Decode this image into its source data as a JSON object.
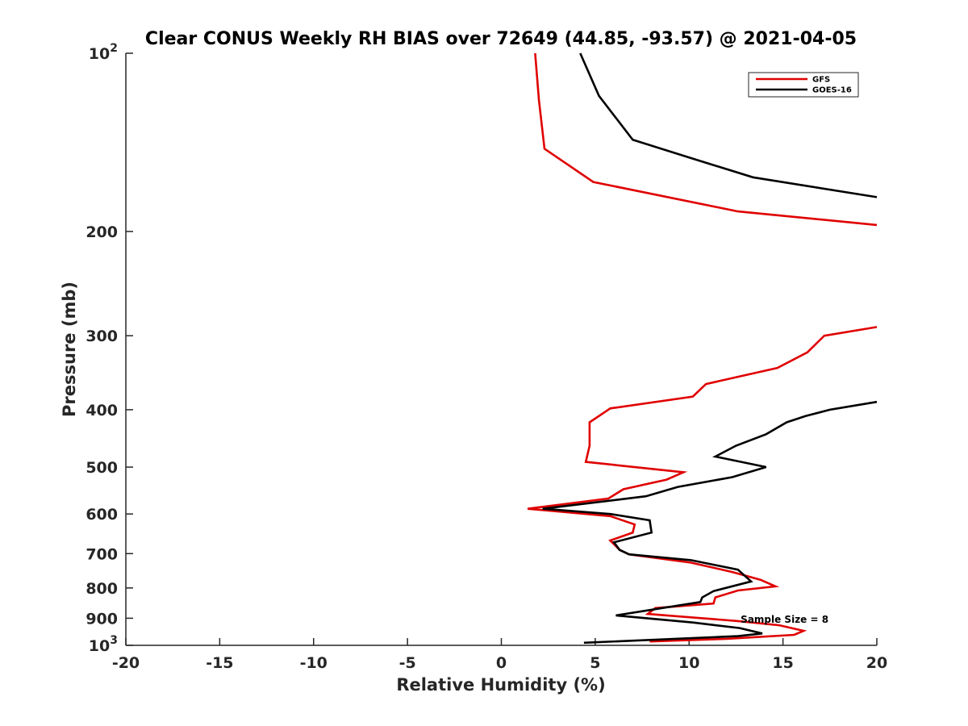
{
  "chart_data": {
    "type": "line",
    "title": "Clear CONUS Weekly RH BIAS over 72649 (44.85, -93.57) @ 2021-04-05",
    "xlabel": "Relative Humidity (%)",
    "ylabel": "Pressure (mb)",
    "xlim": [
      -20,
      20
    ],
    "ylim": [
      100,
      1000
    ],
    "y_scale": "log",
    "y_reversed": true,
    "grid": false,
    "legend_position": "top-right",
    "x_ticks": [
      {
        "value": -20,
        "label": "-20"
      },
      {
        "value": -15,
        "label": "-15"
      },
      {
        "value": -10,
        "label": "-10"
      },
      {
        "value": -5,
        "label": "-5"
      },
      {
        "value": 0,
        "label": "0"
      },
      {
        "value": 5,
        "label": "5"
      },
      {
        "value": 10,
        "label": "10"
      },
      {
        "value": 15,
        "label": "15"
      },
      {
        "value": 20,
        "label": "20"
      }
    ],
    "y_ticks": [
      {
        "value": 100,
        "label": "10",
        "sup": "2"
      },
      {
        "value": 200,
        "label": "200",
        "sup": ""
      },
      {
        "value": 300,
        "label": "300",
        "sup": ""
      },
      {
        "value": 400,
        "label": "400",
        "sup": ""
      },
      {
        "value": 500,
        "label": "500",
        "sup": ""
      },
      {
        "value": 600,
        "label": "600",
        "sup": ""
      },
      {
        "value": 700,
        "label": "700",
        "sup": ""
      },
      {
        "value": 800,
        "label": "800",
        "sup": ""
      },
      {
        "value": 900,
        "label": "900",
        "sup": ""
      },
      {
        "value": 1000,
        "label": "10",
        "sup": "3"
      }
    ],
    "series": [
      {
        "name": "GFS",
        "color": "#e00000",
        "points": [
          {
            "rh": 1.8,
            "p": 100
          },
          {
            "rh": 2.0,
            "p": 120
          },
          {
            "rh": 2.3,
            "p": 145
          },
          {
            "rh": 4.9,
            "p": 165
          },
          {
            "rh": 12.6,
            "p": 185
          },
          {
            "rh": 20,
            "p": 195
          }
        ]
      },
      {
        "name": "GFS",
        "color": "#e00000",
        "points": [
          {
            "rh": 20,
            "p": 290
          },
          {
            "rh": 17.2,
            "p": 300
          },
          {
            "rh": 16.3,
            "p": 320
          },
          {
            "rh": 14.7,
            "p": 340
          },
          {
            "rh": 10.9,
            "p": 362
          },
          {
            "rh": 10.2,
            "p": 380
          },
          {
            "rh": 5.8,
            "p": 398
          },
          {
            "rh": 4.7,
            "p": 420
          },
          {
            "rh": 4.7,
            "p": 460
          },
          {
            "rh": 4.5,
            "p": 490
          },
          {
            "rh": 9.7,
            "p": 510
          },
          {
            "rh": 8.8,
            "p": 525
          },
          {
            "rh": 6.5,
            "p": 545
          },
          {
            "rh": 5.7,
            "p": 565
          },
          {
            "rh": 1.4,
            "p": 588
          },
          {
            "rh": 5.8,
            "p": 605
          },
          {
            "rh": 7.1,
            "p": 625
          },
          {
            "rh": 7.0,
            "p": 645
          },
          {
            "rh": 5.8,
            "p": 665
          },
          {
            "rh": 6.3,
            "p": 690
          },
          {
            "rh": 6.8,
            "p": 702
          },
          {
            "rh": 10.1,
            "p": 725
          },
          {
            "rh": 12.3,
            "p": 752
          },
          {
            "rh": 13.8,
            "p": 775
          },
          {
            "rh": 14.6,
            "p": 795
          },
          {
            "rh": 12.6,
            "p": 808
          },
          {
            "rh": 11.4,
            "p": 830
          },
          {
            "rh": 11.3,
            "p": 850
          },
          {
            "rh": 8.2,
            "p": 865
          },
          {
            "rh": 7.8,
            "p": 885
          },
          {
            "rh": 12.6,
            "p": 910
          },
          {
            "rh": 14.8,
            "p": 925
          },
          {
            "rh": 16.1,
            "p": 945
          },
          {
            "rh": 15.6,
            "p": 960
          },
          {
            "rh": 12.0,
            "p": 975
          },
          {
            "rh": 7.9,
            "p": 985
          }
        ]
      },
      {
        "name": "GOES-16",
        "color": "#000000",
        "points": [
          {
            "rh": 4.2,
            "p": 100
          },
          {
            "rh": 5.2,
            "p": 118
          },
          {
            "rh": 7.0,
            "p": 140
          },
          {
            "rh": 10.0,
            "p": 150
          },
          {
            "rh": 13.4,
            "p": 162
          },
          {
            "rh": 20,
            "p": 175
          }
        ]
      },
      {
        "name": "GOES-16",
        "color": "#000000",
        "points": [
          {
            "rh": 20,
            "p": 388
          },
          {
            "rh": 17.5,
            "p": 400
          },
          {
            "rh": 16.2,
            "p": 410
          },
          {
            "rh": 15.2,
            "p": 420
          },
          {
            "rh": 14.1,
            "p": 440
          },
          {
            "rh": 12.5,
            "p": 460
          },
          {
            "rh": 11.4,
            "p": 480
          },
          {
            "rh": 14.1,
            "p": 500
          },
          {
            "rh": 12.3,
            "p": 520
          },
          {
            "rh": 9.4,
            "p": 540
          },
          {
            "rh": 7.7,
            "p": 560
          },
          {
            "rh": 2.2,
            "p": 588
          },
          {
            "rh": 5.8,
            "p": 600
          },
          {
            "rh": 7.9,
            "p": 615
          },
          {
            "rh": 8.0,
            "p": 645
          },
          {
            "rh": 6.0,
            "p": 670
          },
          {
            "rh": 6.3,
            "p": 690
          },
          {
            "rh": 6.8,
            "p": 702
          },
          {
            "rh": 10.1,
            "p": 718
          },
          {
            "rh": 12.6,
            "p": 745
          },
          {
            "rh": 13.3,
            "p": 780
          },
          {
            "rh": 11.3,
            "p": 810
          },
          {
            "rh": 10.7,
            "p": 830
          },
          {
            "rh": 10.6,
            "p": 845
          },
          {
            "rh": 6.1,
            "p": 890
          },
          {
            "rh": 10.2,
            "p": 915
          },
          {
            "rh": 12.7,
            "p": 935
          },
          {
            "rh": 13.9,
            "p": 955
          },
          {
            "rh": 12.6,
            "p": 965
          },
          {
            "rh": 4.4,
            "p": 990
          }
        ]
      }
    ],
    "legend": [
      {
        "label": "GFS",
        "color": "#e00000"
      },
      {
        "label": "GOES-16",
        "color": "#000000"
      }
    ],
    "annotations": [
      {
        "text": "Sample Size = 8",
        "rh": 15,
        "p": 905
      }
    ]
  }
}
